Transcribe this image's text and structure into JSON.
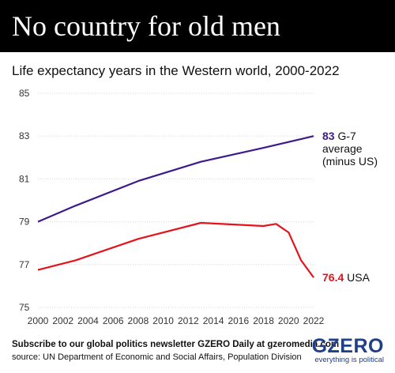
{
  "header": {
    "title": "No country for old men"
  },
  "chart_data": {
    "type": "line",
    "title": "No country for old men",
    "subtitle": "Life expectancy years in the Western world, 2000-2022",
    "xlim": [
      2000,
      2022
    ],
    "ylim": [
      75,
      85
    ],
    "x_ticks": [
      2000,
      2002,
      2004,
      2006,
      2008,
      2010,
      2012,
      2014,
      2016,
      2018,
      2020,
      2022
    ],
    "y_ticks": [
      75,
      77,
      79,
      81,
      83,
      85
    ],
    "grid": "horizontal",
    "series": [
      {
        "name": "G-7 average (minus US)",
        "label_value": "83",
        "label_lines": [
          "G-7",
          "average",
          "(minus US)"
        ],
        "color": "#3d1a8c",
        "x": [
          2000,
          2003,
          2008,
          2013,
          2018,
          2022
        ],
        "y": [
          79.0,
          79.75,
          80.9,
          81.8,
          82.45,
          83.0
        ]
      },
      {
        "name": "USA",
        "label_value": "76.4",
        "label_lines": [
          "USA"
        ],
        "color": "#e3141c",
        "x": [
          2000,
          2003,
          2008,
          2013,
          2018,
          2019,
          2020,
          2021,
          2022
        ],
        "y": [
          76.75,
          77.2,
          78.2,
          78.95,
          78.8,
          78.9,
          78.5,
          77.2,
          76.4
        ]
      }
    ]
  },
  "footer": {
    "newsletter": "Subscribe to our global politics newsletter GZERO Daily at gzeromedia.com",
    "source": "source: UN Department of Economic and Social Affairs, Population Division"
  },
  "logo": {
    "word": "GZERO",
    "tagline": "everything is political"
  }
}
